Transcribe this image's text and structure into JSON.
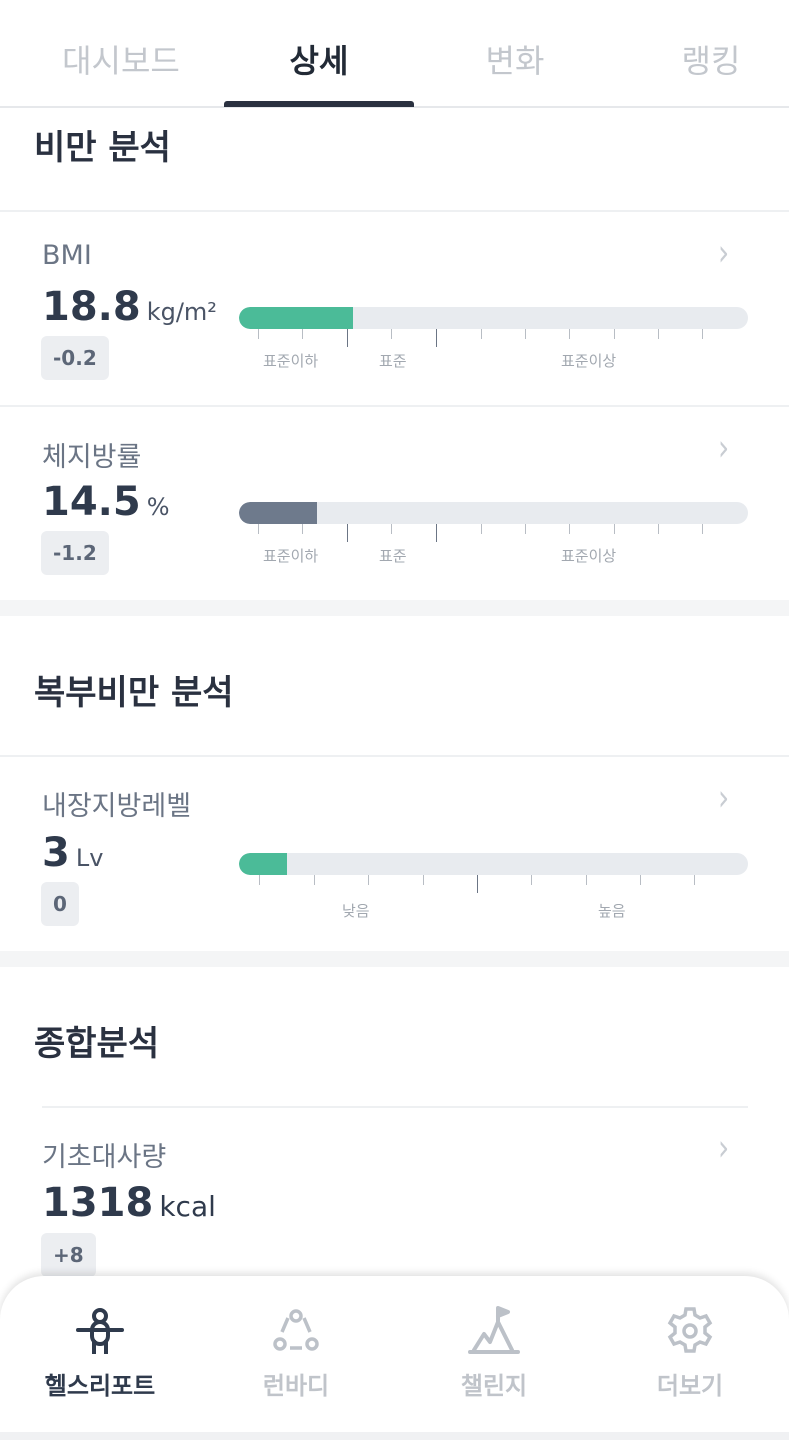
{
  "tabs": [
    {
      "label": "대시보드"
    },
    {
      "label": "상세",
      "active": true
    },
    {
      "label": "변화"
    },
    {
      "label": "랭킹"
    }
  ],
  "sections": {
    "obesity": {
      "title": "비만 분석"
    },
    "abdominal": {
      "title": "복부비만 분석"
    },
    "overall": {
      "title": "종합분석"
    }
  },
  "metrics": {
    "bmi": {
      "label": "BMI",
      "value": "18.8",
      "unit": "kg/m²",
      "change": "-0.2",
      "fill_percent": 22.4,
      "fill_color": "#4bbb98",
      "scale": [
        "표준이하",
        "표준",
        "표준이상"
      ]
    },
    "bodyfat": {
      "label": "체지방률",
      "value": "14.5",
      "unit": "%",
      "change": "-1.2",
      "fill_percent": 15.3,
      "fill_color": "#6e7a8c",
      "scale": [
        "표준이하",
        "표준",
        "표준이상"
      ]
    },
    "visceral": {
      "label": "내장지방레벨",
      "value": "3",
      "unit": "Lv",
      "change": "0",
      "fill_percent": 9.4,
      "fill_color": "#4bbb98",
      "scale": [
        "낮음",
        "높음"
      ]
    },
    "bmr": {
      "label": "기초대사량",
      "value": "1318",
      "unit": "kcal",
      "change": "+8"
    }
  },
  "nav": [
    {
      "label": "헬스리포트",
      "icon": "person-icon",
      "active": true
    },
    {
      "label": "런바디",
      "icon": "share-circle-icon"
    },
    {
      "label": "챌린지",
      "icon": "mountain-flag-icon"
    },
    {
      "label": "더보기",
      "icon": "gear-icon"
    }
  ]
}
